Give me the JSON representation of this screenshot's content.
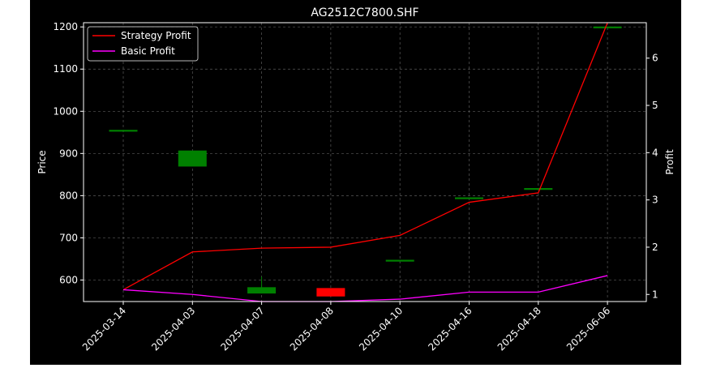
{
  "chart_data": {
    "type": "candlestick",
    "title": "AG2512C7800.SHF",
    "xlabel": "",
    "ylabel_left": "Price",
    "ylabel_right": "Profit",
    "categories": [
      "2025-03-14",
      "2025-04-03",
      "2025-04-07",
      "2025-04-08",
      "2025-04-10",
      "2025-04-16",
      "2025-04-18",
      "2025-06-06"
    ],
    "ylim_left": [
      549,
      1210
    ],
    "yticks_left": [
      600,
      700,
      800,
      900,
      1000,
      1100,
      1200
    ],
    "ylim_right": [
      0.85,
      6.75
    ],
    "yticks_right": [
      1,
      2,
      3,
      4,
      5,
      6
    ],
    "grid": true,
    "legend_position": "top-left",
    "candles": [
      {
        "date": "2025-03-14",
        "open": 955,
        "close": 955,
        "high": 955,
        "low": 955
      },
      {
        "date": "2025-04-03",
        "open": 870,
        "close": 906,
        "high": 906,
        "low": 870
      },
      {
        "date": "2025-04-07",
        "open": 569,
        "close": 582,
        "high": 608,
        "low": 569
      },
      {
        "date": "2025-04-08",
        "open": 580,
        "close": 562,
        "high": 580,
        "low": 562
      },
      {
        "date": "2025-04-10",
        "open": 647,
        "close": 647,
        "high": 647,
        "low": 647
      },
      {
        "date": "2025-04-16",
        "open": 795,
        "close": 795,
        "high": 795,
        "low": 795
      },
      {
        "date": "2025-04-18",
        "open": 817,
        "close": 817,
        "high": 817,
        "low": 817
      },
      {
        "date": "2025-06-06",
        "open": 1200,
        "close": 1200,
        "high": 1200,
        "low": 1200
      }
    ],
    "series": [
      {
        "name": "Strategy Profit",
        "color": "#ff0000",
        "axis": "right",
        "values": [
          1.1,
          1.9,
          1.98,
          2.0,
          2.25,
          2.95,
          3.15,
          6.75
        ]
      },
      {
        "name": "Basic Profit",
        "color": "#ff00ff",
        "axis": "right",
        "values": [
          1.1,
          1.0,
          0.85,
          0.85,
          0.9,
          1.05,
          1.05,
          1.4
        ]
      }
    ],
    "colors": {
      "up": "#008000",
      "down": "#ff0000",
      "background": "#000000",
      "text": "#ffffff",
      "grid": "#808080"
    }
  }
}
